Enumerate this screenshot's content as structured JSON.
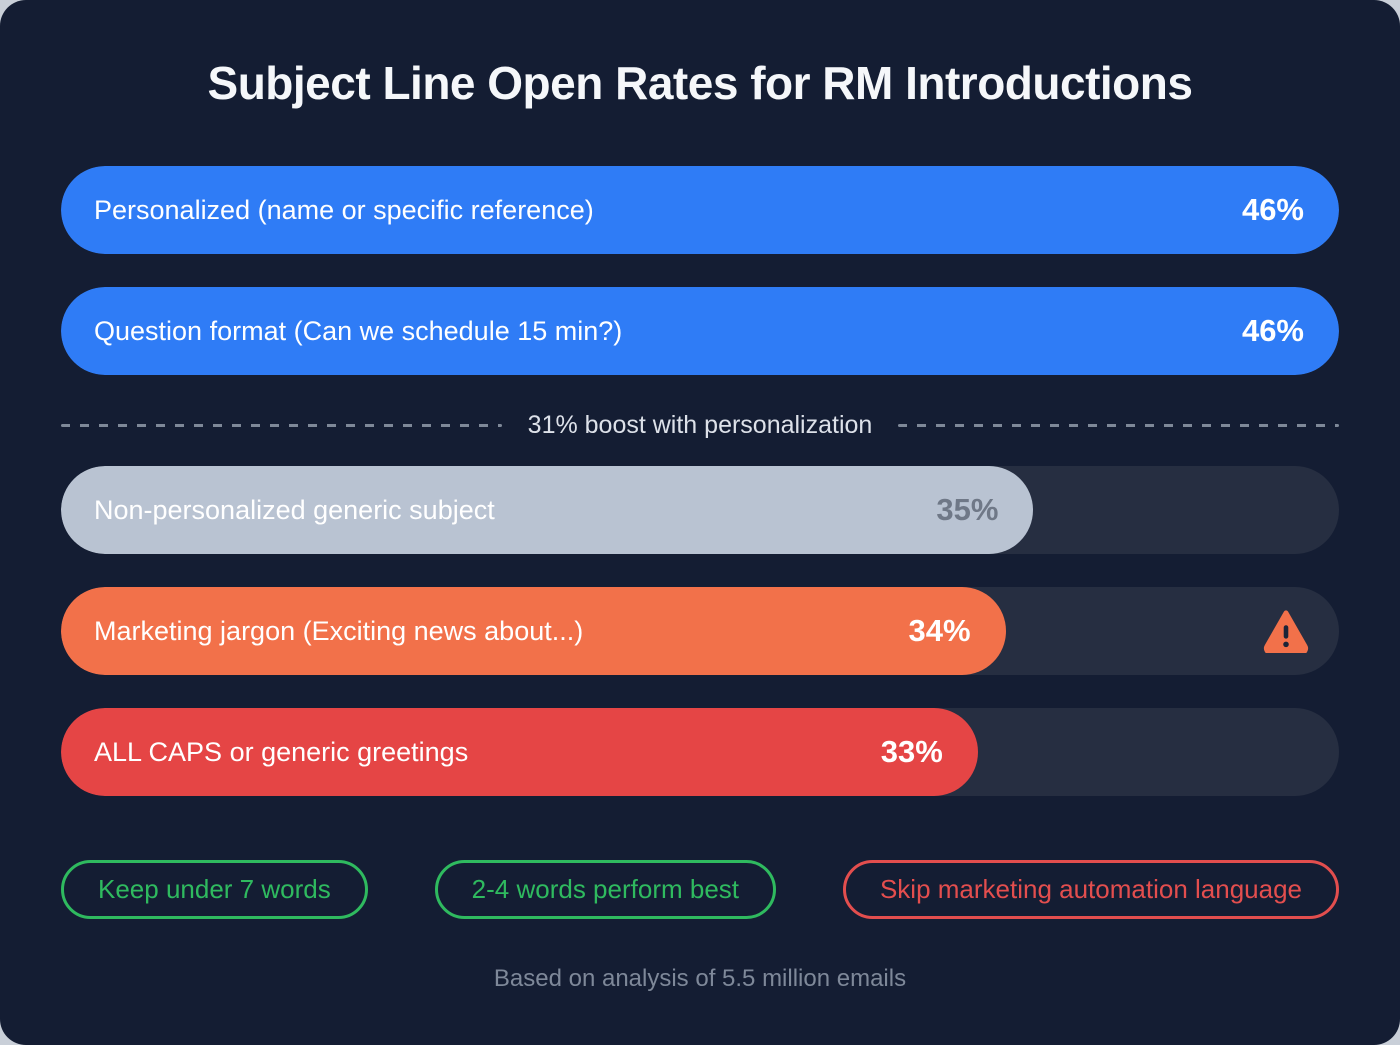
{
  "title": "Subject Line Open Rates for RM Introductions",
  "chart_data": {
    "type": "bar",
    "orientation": "horizontal",
    "title": "Subject Line Open Rates for RM Introductions",
    "categories": [
      "Personalized (name or specific reference)",
      "Question format (Can we schedule 15 min?)",
      "Non-personalized generic subject",
      "Marketing jargon (Exciting news about...)",
      "ALL CAPS or generic greetings"
    ],
    "values": [
      46,
      46,
      35,
      34,
      33
    ],
    "unit": "%",
    "xlim": [
      0,
      46
    ],
    "annotation": "31% boost with personalization",
    "source_note": "Based on analysis of 5.5 million emails",
    "legend": "none",
    "grid": "off"
  },
  "bars": [
    {
      "label": "Personalized (name or specific reference)",
      "value": 46,
      "display": "46%",
      "fill": "#2F7CF6",
      "label_color": "#FFFFFF",
      "value_color": "#FFFFFF",
      "warning": false
    },
    {
      "label": "Question format (Can we schedule 15 min?)",
      "value": 46,
      "display": "46%",
      "fill": "#2F7CF6",
      "label_color": "#FFFFFF",
      "value_color": "#FFFFFF",
      "warning": false
    },
    {
      "label": "Non-personalized generic subject",
      "value": 35,
      "display": "35%",
      "fill": "#B9C3D2",
      "label_color": "#FFFFFF",
      "value_color": "#6F7887",
      "warning": false
    },
    {
      "label": "Marketing jargon (Exciting news about...)",
      "value": 34,
      "display": "34%",
      "fill": "#F2714A",
      "label_color": "#FFFFFF",
      "value_color": "#FFFFFF",
      "warning": true
    },
    {
      "label": "ALL CAPS or generic greetings",
      "value": 33,
      "display": "33%",
      "fill": "#E54545",
      "label_color": "#FFFFFF",
      "value_color": "#FFFFFF",
      "warning": false
    }
  ],
  "divider": {
    "label": "31% boost with personalization"
  },
  "badges": [
    {
      "label": "Keep under 7 words",
      "color": "#2FBA5F"
    },
    {
      "label": "2-4 words perform best",
      "color": "#2FBA5F"
    },
    {
      "label": "Skip marketing automation language",
      "color": "#E34E4E"
    }
  ],
  "footer": {
    "note": "Based on analysis of 5.5 million emails"
  },
  "colors": {
    "card_background": "#141D33",
    "page_background": "#C9CFD8",
    "bar_track": "#262E41",
    "dashed_line": "#7E8898",
    "title_text": "#F5F7FA",
    "footer_text": "#7E8899",
    "warning_icon": "#F2714A",
    "warning_glyph": "#1B2438"
  }
}
